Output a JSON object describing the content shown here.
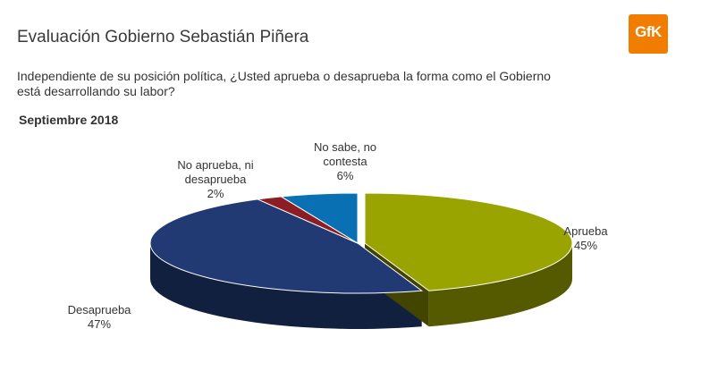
{
  "header": {
    "title": "Evaluación Gobierno Sebastián Piñera",
    "question_line1": "Independiente de su posición política, ¿Usted aprueba o desaprueba la forma como el Gobierno",
    "question_line2": "está desarrollando su labor?",
    "period": "Septiembre 2018"
  },
  "logo": {
    "text": "GfK",
    "color": "#f07d00"
  },
  "chart_data": {
    "type": "pie",
    "title": "Septiembre 2018",
    "slices": [
      {
        "name": "Aprueba",
        "value": 45,
        "value_label": "45%",
        "color": "#9aa400"
      },
      {
        "name": "Desaprueba",
        "value": 47,
        "value_label": "47%",
        "color": "#213a74"
      },
      {
        "name_line1": "No aprueba, ni",
        "name_line2": "desaprueba",
        "value": 2,
        "value_label": "2%",
        "color": "#8c1e23"
      },
      {
        "name_line1": "No sabe, no",
        "name_line2": "contesta",
        "value": 6,
        "value_label": "6%",
        "color": "#0a70b4"
      }
    ]
  }
}
